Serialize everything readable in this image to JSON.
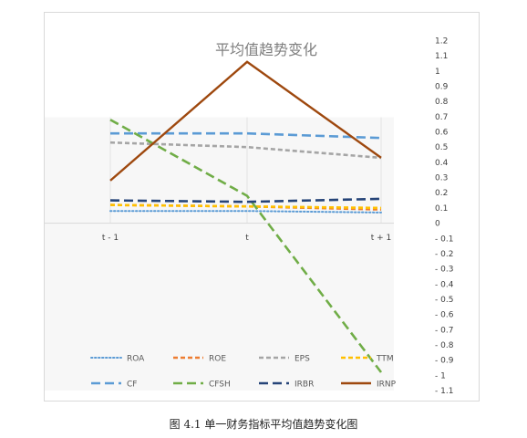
{
  "caption": "图 4.1 单一财务指标平均值趋势变化图",
  "chart_data": {
    "type": "line",
    "title": "平均值趋势变化",
    "xlabel": "",
    "ylabel": "",
    "categories": [
      "t - 1",
      "t",
      "t + 1"
    ],
    "ylim": [
      -1.1,
      1.2
    ],
    "yticks": [
      1.2,
      1.1,
      1,
      0.9,
      0.8,
      0.7,
      0.6,
      0.5,
      0.4,
      0.3,
      0.2,
      0.1,
      0,
      -0.1,
      -0.2,
      -0.3,
      -0.4,
      -0.5,
      -0.6,
      -0.7,
      -0.8,
      -0.9,
      -1,
      -1.1
    ],
    "ytick_labels": [
      "1.2",
      "1.1",
      "1",
      "0.9",
      "0.8",
      "0.7",
      "0.6",
      "0.5",
      "0.4",
      "0.3",
      "0.2",
      "0.1",
      "0",
      "- 0.1",
      "- 0.2",
      "- 0.3",
      "- 0.4",
      "- 0.5",
      "- 0.6",
      "- 0.7",
      "- 0.8",
      "- 0.9",
      "- 1",
      "- 1.1"
    ],
    "grid": false,
    "legend": "bottom",
    "series": [
      {
        "name": "ROA",
        "values": [
          0.08,
          0.08,
          0.07
        ],
        "color": "#5b9bd5",
        "style": "dotted"
      },
      {
        "name": "ROE",
        "values": [
          0.12,
          0.11,
          0.09
        ],
        "color": "#ed7d31",
        "style": "dashed"
      },
      {
        "name": "EPS",
        "values": [
          0.53,
          0.5,
          0.43
        ],
        "color": "#a5a5a5",
        "style": "dashed"
      },
      {
        "name": "TTM",
        "values": [
          0.12,
          0.11,
          0.1
        ],
        "color": "#ffc000",
        "style": "dashed"
      },
      {
        "name": "CF",
        "values": [
          0.59,
          0.59,
          0.56
        ],
        "color": "#5b9bd5",
        "style": "longdash"
      },
      {
        "name": "CFSH",
        "values": [
          0.68,
          0.18,
          -0.98
        ],
        "color": "#70ad47",
        "style": "longdash"
      },
      {
        "name": "IRBR",
        "values": [
          0.15,
          0.14,
          0.16
        ],
        "color": "#264478",
        "style": "longdash"
      },
      {
        "name": "IRNP",
        "values": [
          0.28,
          1.06,
          0.43
        ],
        "color": "#9e480e",
        "style": "solid"
      }
    ]
  }
}
